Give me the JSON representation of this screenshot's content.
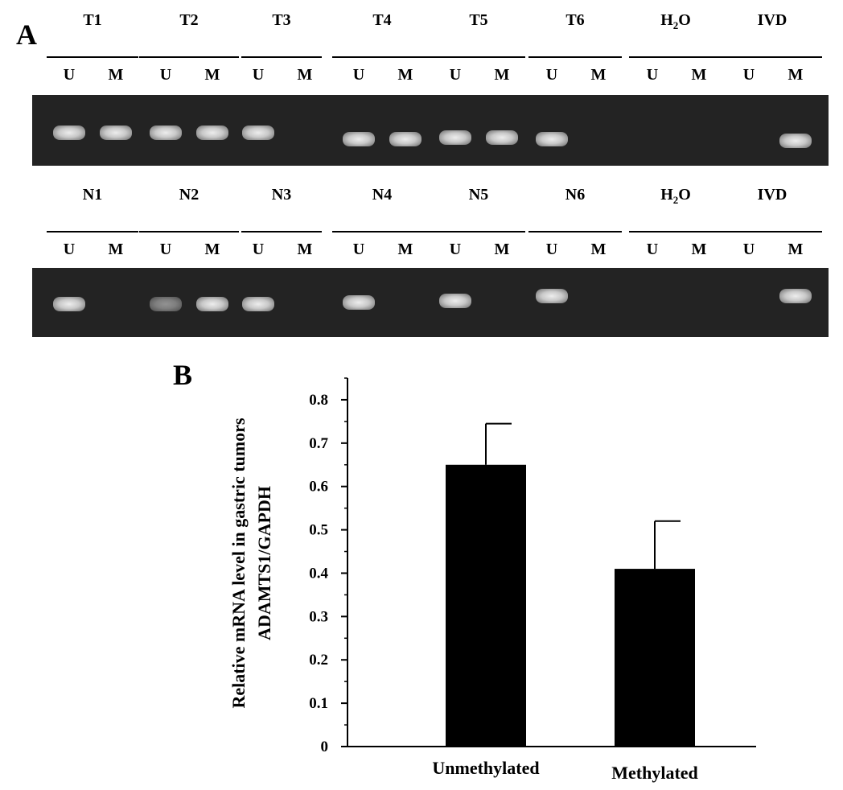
{
  "panel_a": {
    "letter": "A",
    "top_row": {
      "groups": [
        {
          "label": "T1",
          "sub": "",
          "lanes": [
            "U",
            "M"
          ],
          "bands": [
            1,
            1
          ]
        },
        {
          "label": "T2",
          "sub": "",
          "lanes": [
            "U",
            "M"
          ],
          "bands": [
            1,
            1
          ]
        },
        {
          "label": "T3",
          "sub": "",
          "lanes": [
            "U",
            "M"
          ],
          "bands": [
            1,
            0
          ]
        },
        {
          "label": "T4",
          "sub": "",
          "lanes": [
            "U",
            "M"
          ],
          "bands": [
            1,
            1
          ]
        },
        {
          "label": "T5",
          "sub": "",
          "lanes": [
            "U",
            "M"
          ],
          "bands": [
            1,
            1
          ]
        },
        {
          "label": "T6",
          "sub": "",
          "lanes": [
            "U",
            "M"
          ],
          "bands": [
            1,
            0
          ]
        },
        {
          "label": "H",
          "sub": "2",
          "tail": "O",
          "lanes": [
            "U",
            "M"
          ],
          "bands": [
            0,
            0
          ]
        },
        {
          "label": "IVD",
          "sub": "",
          "lanes": [
            "U",
            "M"
          ],
          "bands": [
            0,
            1
          ]
        }
      ]
    },
    "bottom_row": {
      "groups": [
        {
          "label": "N1",
          "sub": "",
          "lanes": [
            "U",
            "M"
          ],
          "bands": [
            1,
            0
          ]
        },
        {
          "label": "N2",
          "sub": "",
          "lanes": [
            "U",
            "M"
          ],
          "bands": [
            0.5,
            1
          ]
        },
        {
          "label": "N3",
          "sub": "",
          "lanes": [
            "U",
            "M"
          ],
          "bands": [
            1,
            0
          ]
        },
        {
          "label": "N4",
          "sub": "",
          "lanes": [
            "U",
            "M"
          ],
          "bands": [
            1,
            0
          ]
        },
        {
          "label": "N5",
          "sub": "",
          "lanes": [
            "U",
            "M"
          ],
          "bands": [
            1,
            0
          ]
        },
        {
          "label": "N6",
          "sub": "",
          "lanes": [
            "U",
            "M"
          ],
          "bands": [
            1,
            0
          ]
        },
        {
          "label": "H",
          "sub": "2",
          "tail": "O",
          "lanes": [
            "U",
            "M"
          ],
          "bands": [
            0,
            0
          ]
        },
        {
          "label": "IVD",
          "sub": "",
          "lanes": [
            "U",
            "M"
          ],
          "bands": [
            0,
            1
          ]
        }
      ]
    }
  },
  "panel_b": {
    "letter": "B"
  },
  "chart_data": {
    "type": "bar",
    "categories": [
      "Unmethylated",
      "Methylated"
    ],
    "values": [
      0.65,
      0.41
    ],
    "error_upper": [
      0.745,
      0.52
    ],
    "title": "",
    "ylabel_line1": "Relative mRNA level in gastric tumors",
    "ylabel_line2": "ADAMTS1/GAPDH",
    "xlabel": "",
    "ylim": [
      0,
      0.85
    ],
    "yticks": [
      0,
      0.1,
      0.2,
      0.3,
      0.4,
      0.5,
      0.6,
      0.7,
      0.8
    ],
    "ytick_labels": [
      "0",
      "0.1",
      "0.2",
      "0.3",
      "0.4",
      "0.5",
      "0.6",
      "0.7",
      "0.8"
    ],
    "grid": false,
    "legend": "none",
    "bar_color": "#000000"
  }
}
